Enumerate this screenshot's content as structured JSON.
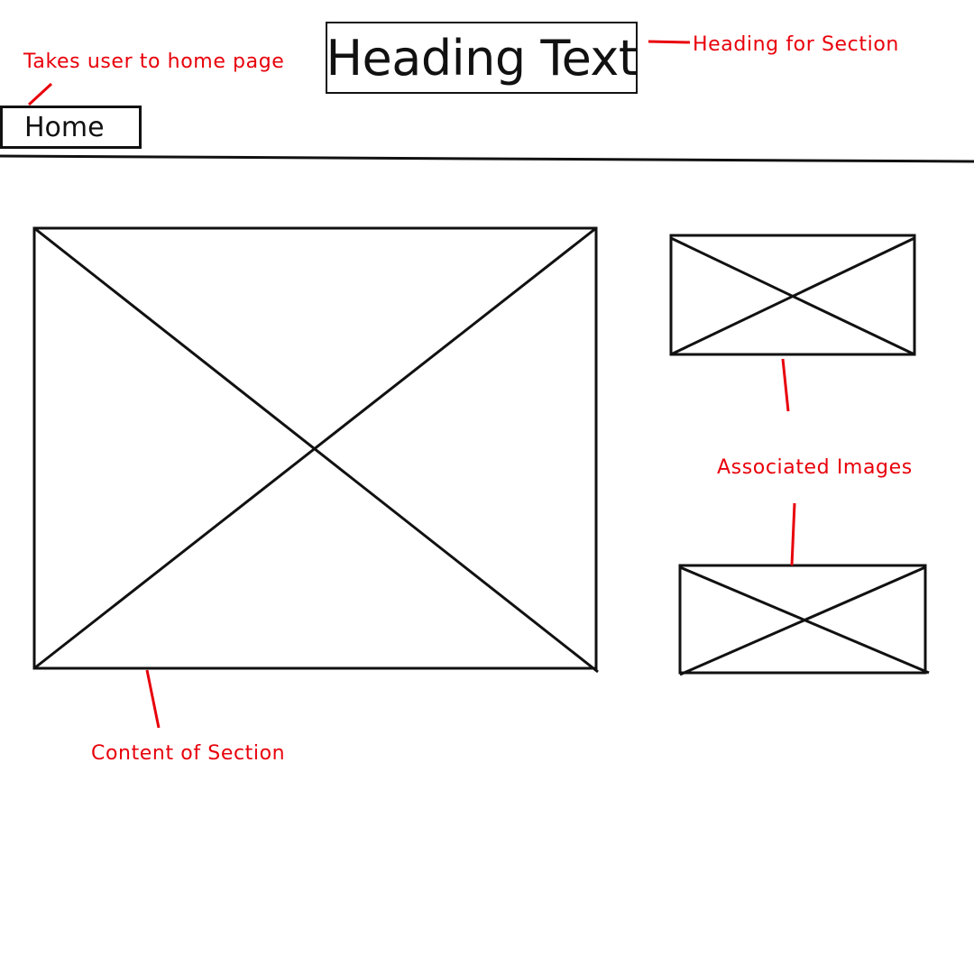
{
  "header": {
    "heading_text": "Heading Text",
    "home_label": "Home"
  },
  "annotations": {
    "home": "Takes user to home page",
    "heading": "Heading for Section",
    "images": "Associated Images",
    "content": "Content of Section"
  },
  "colors": {
    "stroke": "#111111",
    "annotation": "#e8000a",
    "background": "#ffffff"
  }
}
